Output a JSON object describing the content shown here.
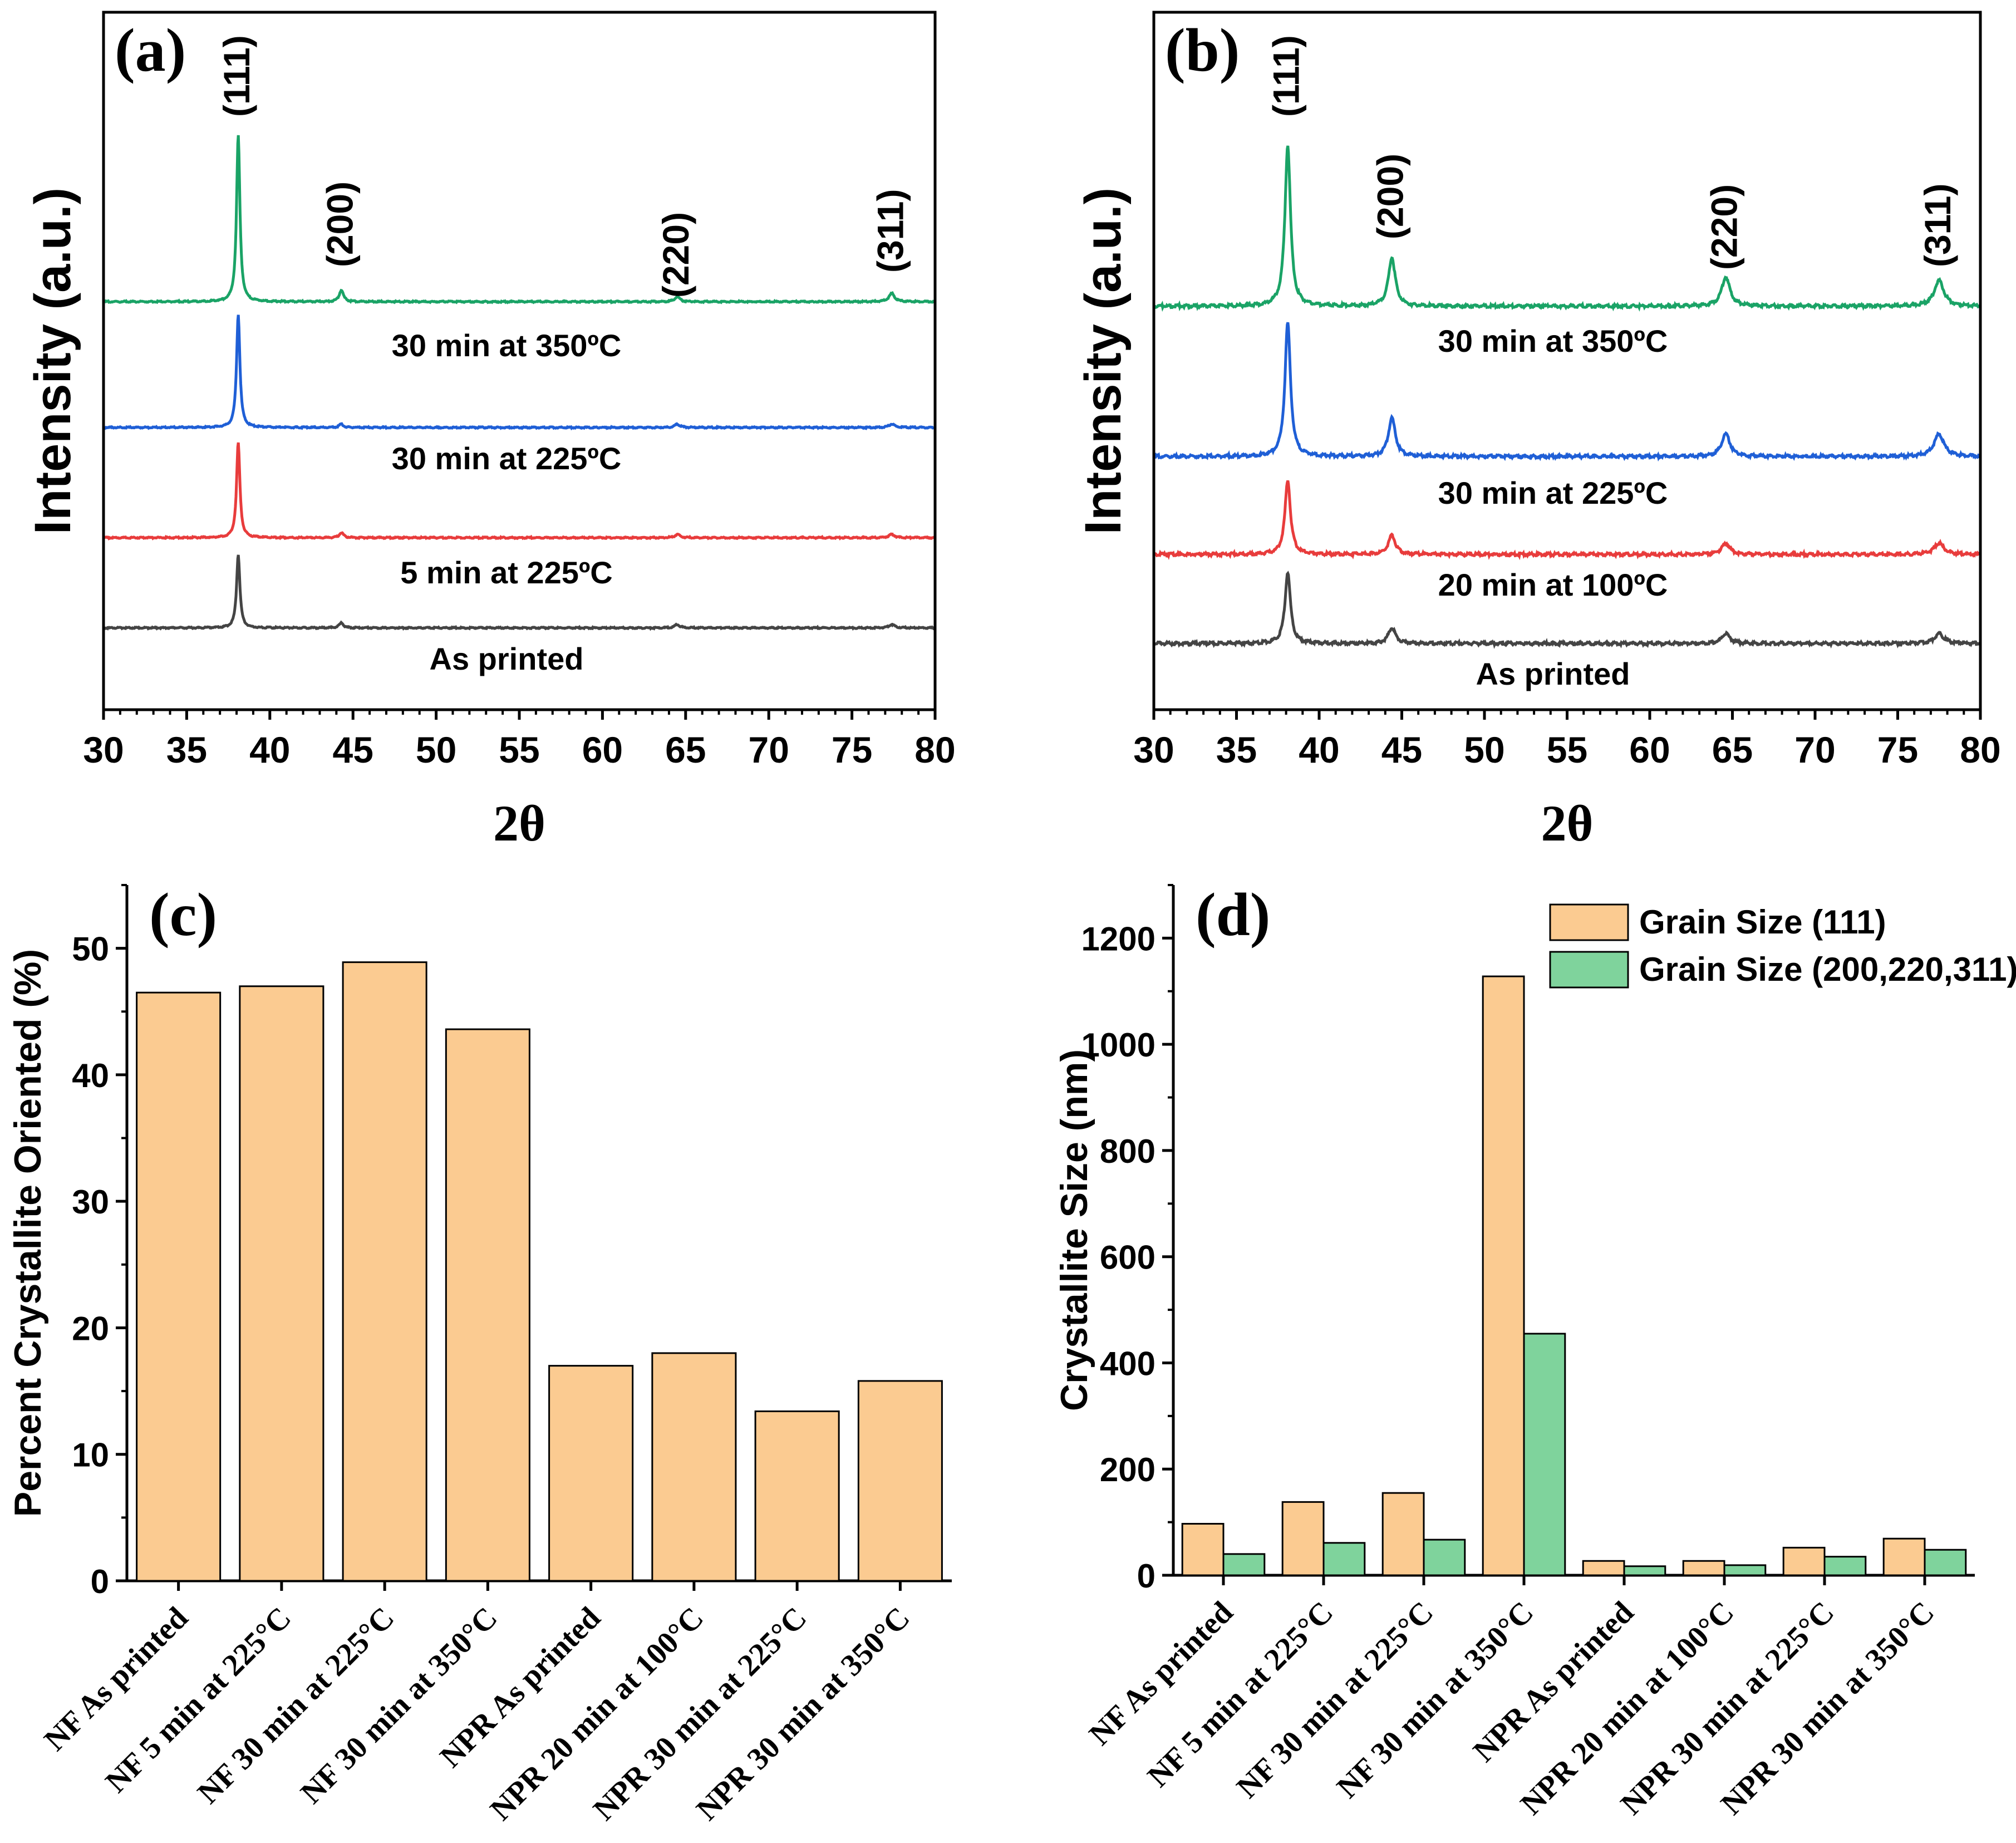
{
  "chart_data": [
    {
      "id": "a",
      "type": "line",
      "panel_label": "(a)",
      "xlabel": "2θ",
      "ylabel": "Intensity (a.u.)",
      "xlim": [
        30,
        80
      ],
      "xticks": [
        30,
        35,
        40,
        45,
        50,
        55,
        60,
        65,
        70,
        75,
        80
      ],
      "peaks": [
        {
          "label": "(111)",
          "x": 38.1
        },
        {
          "label": "(200)",
          "x": 44.3
        },
        {
          "label": "(220)",
          "x": 64.5
        },
        {
          "label": "(311)",
          "x": 77.4
        }
      ],
      "series": [
        {
          "name": "As printed",
          "color": "#444444",
          "peak_heights": [
            44,
            3,
            2,
            2
          ]
        },
        {
          "name": "5 min at 225ºC",
          "color": "#e83c3c",
          "peak_heights": [
            57,
            3,
            2,
            2
          ]
        },
        {
          "name": "30 min at 225ºC",
          "color": "#1f5fd6",
          "peak_heights": [
            68,
            2,
            2,
            2
          ]
        },
        {
          "name": "30 min at 350ºC",
          "color": "#1aa366",
          "peak_heights": [
            100,
            7,
            3,
            5
          ]
        }
      ]
    },
    {
      "id": "b",
      "type": "line",
      "panel_label": "(b)",
      "xlabel": "2θ",
      "ylabel": "Intensity (a.u.)",
      "xlim": [
        30,
        80
      ],
      "xticks": [
        30,
        35,
        40,
        45,
        50,
        55,
        60,
        65,
        70,
        75,
        80
      ],
      "peaks": [
        {
          "label": "(111)",
          "x": 38.1
        },
        {
          "label": "(200)",
          "x": 44.4
        },
        {
          "label": "(220)",
          "x": 64.6
        },
        {
          "label": "(311)",
          "x": 77.5
        }
      ],
      "series": [
        {
          "name": "As printed",
          "color": "#444444",
          "peak_heights": [
            44,
            10,
            6,
            6
          ]
        },
        {
          "name": "20 min at 100ºC",
          "color": "#e83c3c",
          "peak_heights": [
            46,
            12,
            7,
            7
          ]
        },
        {
          "name": "30 min at 225ºC",
          "color": "#1f5fd6",
          "peak_heights": [
            83,
            24,
            14,
            14
          ]
        },
        {
          "name": "30 min at 350ºC",
          "color": "#1aa366",
          "peak_heights": [
            100,
            30,
            18,
            16
          ]
        }
      ]
    },
    {
      "id": "c",
      "type": "bar",
      "panel_label": "(c)",
      "ylabel": "Percent Crystallite Oriented (%)",
      "ylim": [
        0,
        55
      ],
      "yticks": [
        0,
        10,
        20,
        30,
        40,
        50
      ],
      "categories": [
        "NF As printed",
        "NF 5 min at 225°C",
        "NF 30 min at 225°C",
        "NF 30 min at 350°C",
        "NPR As printed",
        "NPR 20 min at 100°C",
        "NPR 30 min at 225°C",
        "NPR 30 min at 350°C"
      ],
      "values": [
        46.5,
        47.0,
        48.9,
        43.6,
        17.0,
        18.0,
        13.4,
        15.8
      ],
      "color": "#fbcb91"
    },
    {
      "id": "d",
      "type": "bar",
      "panel_label": "(d)",
      "ylabel": "Crystallite Size (nm)",
      "ylim": [
        0,
        1300
      ],
      "yticks": [
        0,
        200,
        400,
        600,
        800,
        1000,
        1200
      ],
      "categories": [
        "NF As printed",
        "NF 5 min at 225°C",
        "NF 30 min at 225°C",
        "NF 30 min at 350°C",
        "NPR As printed",
        "NPR 20 min at 100°C",
        "NPR 30 min at 225°C",
        "NPR 30 min at 350°C"
      ],
      "series": [
        {
          "name": "Grain Size (111)",
          "color": "#fbcb91",
          "values": [
            97,
            138,
            155,
            1128,
            27,
            27,
            52,
            69
          ]
        },
        {
          "name": "Grain Size (200,220,311)",
          "color": "#7fd39c",
          "values": [
            40,
            61,
            67,
            455,
            17,
            19,
            35,
            48
          ]
        }
      ],
      "legend": "top-right"
    }
  ]
}
